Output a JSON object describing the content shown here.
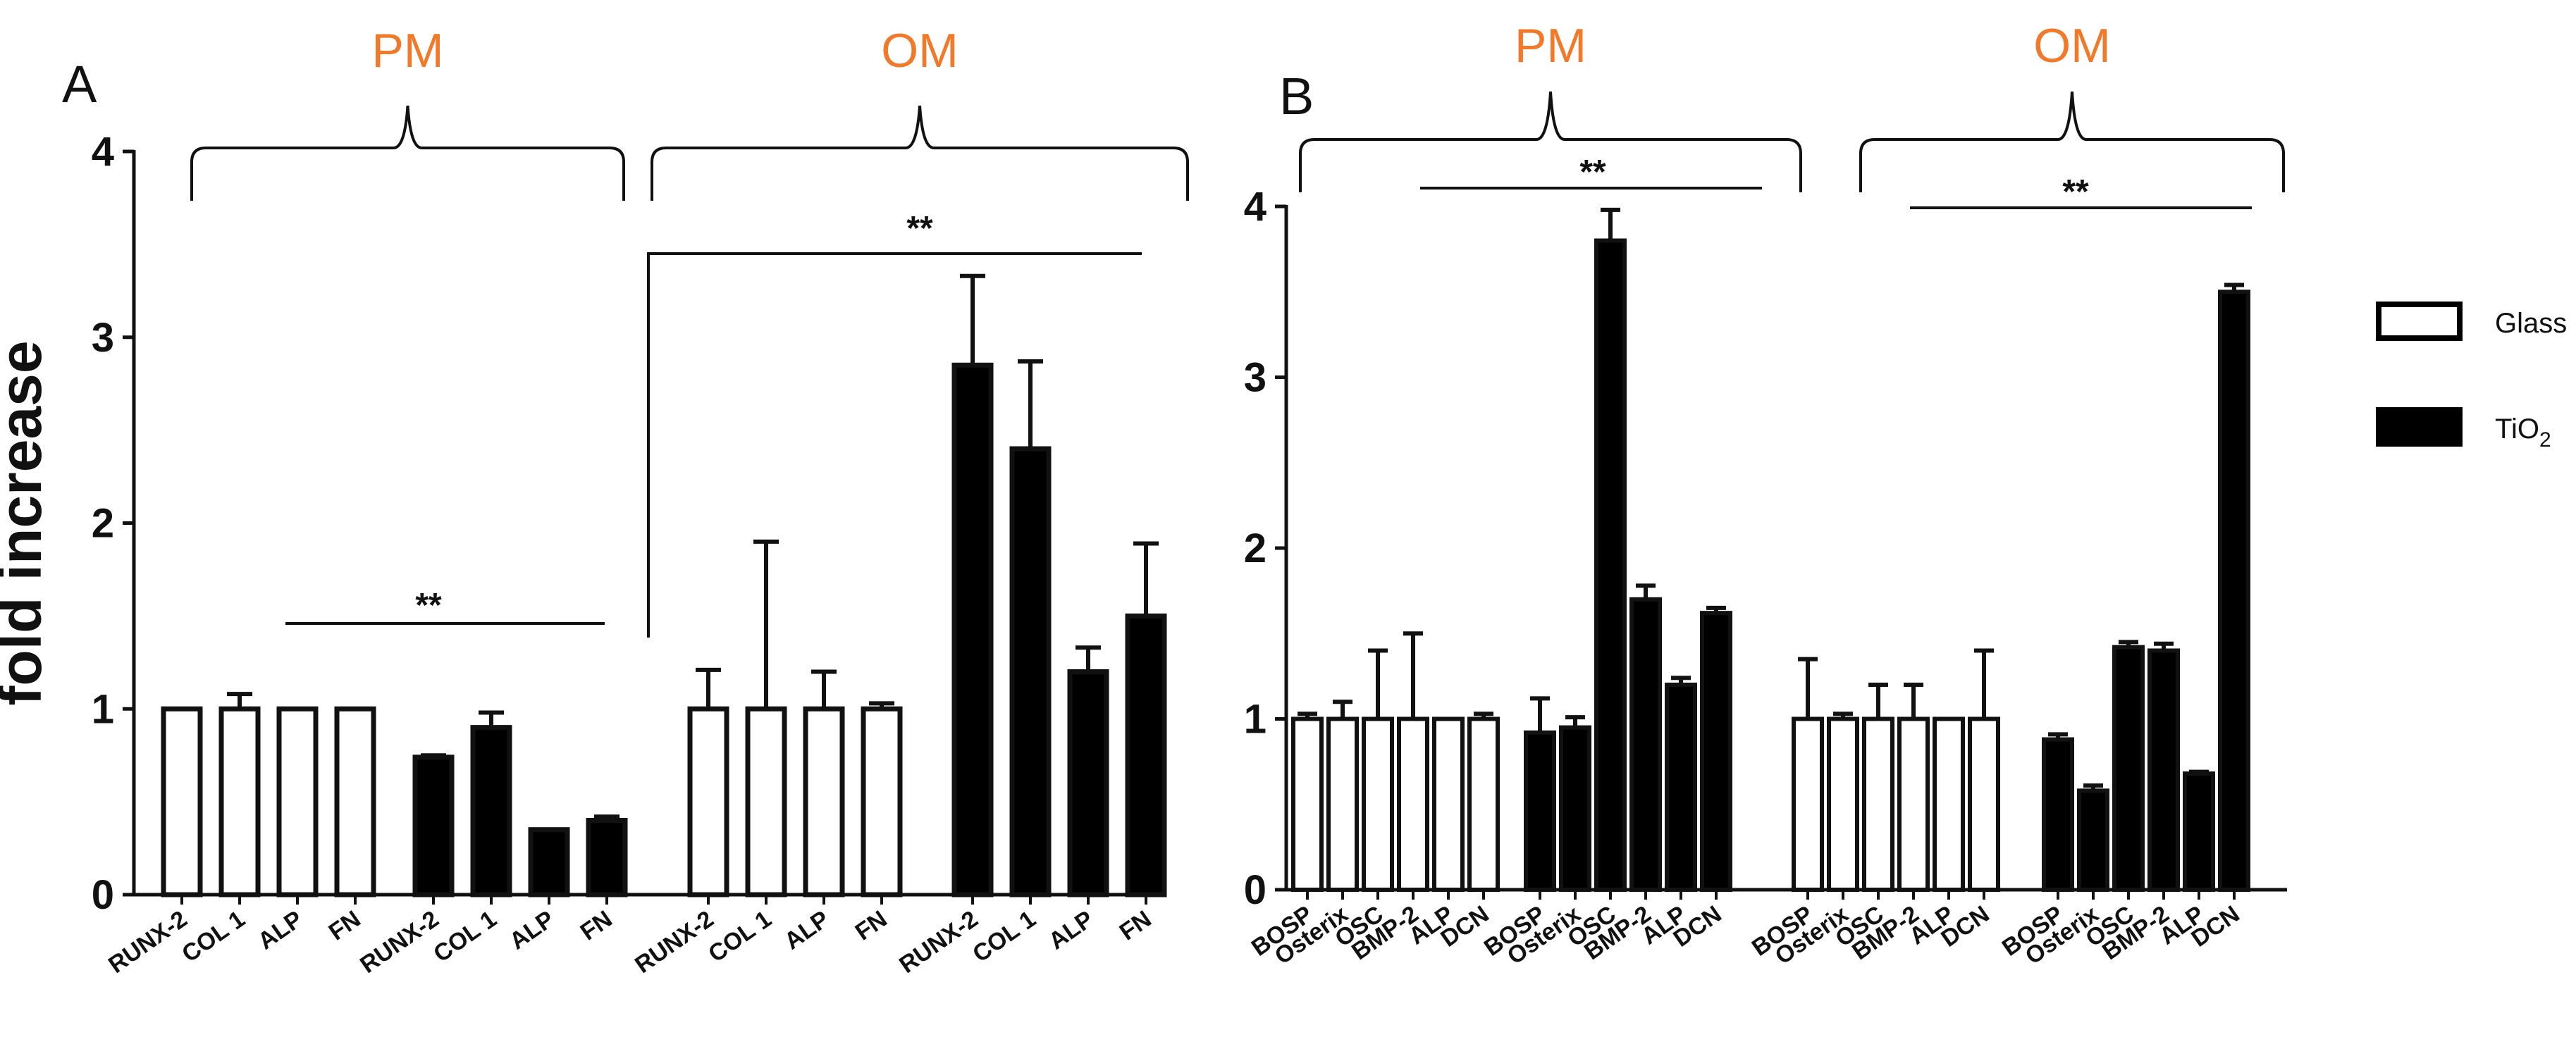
{
  "figure": {
    "colors": {
      "glass_fill": "#ffffff",
      "tio2_fill": "#000000",
      "group_label": "#f07a2a",
      "ink": "#111111"
    }
  },
  "panels": {
    "A": {
      "label": "A"
    },
    "B": {
      "label": "B"
    }
  },
  "legend": {
    "items": [
      {
        "name": "Glass",
        "fill": "#ffffff"
      },
      {
        "name": "TiO",
        "subscript": "2",
        "fill": "#000000"
      }
    ]
  },
  "chart_data": [
    {
      "panel": "A",
      "type": "bar",
      "ylabel": "fold increase",
      "ylim": [
        0,
        4
      ],
      "yticks": [
        0,
        1,
        2,
        3,
        4
      ],
      "group_labels": [
        "PM",
        "OM"
      ],
      "significance": [
        "**",
        "**"
      ],
      "categories": [
        "RUNX-2",
        "COL 1",
        "ALP",
        "FN",
        "RUNX-2",
        "COL 1",
        "ALP",
        "FN",
        "RUNX-2",
        "COL 1",
        "ALP",
        "FN",
        "RUNX-2",
        "COL 1",
        "ALP",
        "FN"
      ],
      "bars": [
        {
          "label": "RUNX-2",
          "series": "Glass",
          "medium": "PM",
          "value": 1.0,
          "error": 0.0
        },
        {
          "label": "COL 1",
          "series": "Glass",
          "medium": "PM",
          "value": 1.0,
          "error": 0.08
        },
        {
          "label": "ALP",
          "series": "Glass",
          "medium": "PM",
          "value": 1.0,
          "error": 0.0
        },
        {
          "label": "FN",
          "series": "Glass",
          "medium": "PM",
          "value": 1.0,
          "error": 0.0
        },
        {
          "label": "RUNX-2",
          "series": "TiO2",
          "medium": "PM",
          "value": 0.74,
          "error": 0.01
        },
        {
          "label": "COL 1",
          "series": "TiO2",
          "medium": "PM",
          "value": 0.9,
          "error": 0.08
        },
        {
          "label": "ALP",
          "series": "TiO2",
          "medium": "PM",
          "value": 0.35,
          "error": 0.0
        },
        {
          "label": "FN",
          "series": "TiO2",
          "medium": "PM",
          "value": 0.4,
          "error": 0.02
        },
        {
          "label": "RUNX-2",
          "series": "Glass",
          "medium": "OM",
          "value": 1.0,
          "error": 0.21
        },
        {
          "label": "COL 1",
          "series": "Glass",
          "medium": "OM",
          "value": 1.0,
          "error": 0.9
        },
        {
          "label": "ALP",
          "series": "Glass",
          "medium": "OM",
          "value": 1.0,
          "error": 0.2
        },
        {
          "label": "FN",
          "series": "Glass",
          "medium": "OM",
          "value": 1.0,
          "error": 0.03
        },
        {
          "label": "RUNX-2",
          "series": "TiO2",
          "medium": "OM",
          "value": 2.85,
          "error": 0.48
        },
        {
          "label": "COL 1",
          "series": "TiO2",
          "medium": "OM",
          "value": 2.4,
          "error": 0.47
        },
        {
          "label": "ALP",
          "series": "TiO2",
          "medium": "OM",
          "value": 1.2,
          "error": 0.13
        },
        {
          "label": "FN",
          "series": "TiO2",
          "medium": "OM",
          "value": 1.5,
          "error": 0.39
        }
      ]
    },
    {
      "panel": "B",
      "type": "bar",
      "ylabel": "",
      "ylim": [
        0,
        4
      ],
      "yticks": [
        0,
        1,
        2,
        3,
        4
      ],
      "group_labels": [
        "PM",
        "OM"
      ],
      "significance": [
        "**",
        "**"
      ],
      "categories": [
        "BOSP",
        "Osterix",
        "OSC",
        "BMP-2",
        "ALP",
        "DCN",
        "BOSP",
        "Osterix",
        "OSC",
        "BMP-2",
        "ALP",
        "DCN",
        "BOSP",
        "Osterix",
        "OSC",
        "BMP-2",
        "ALP",
        "DCN",
        "BOSP",
        "Osterix",
        "OSC",
        "BMP-2",
        "ALP",
        "DCN"
      ],
      "bars": [
        {
          "label": "BOSP",
          "series": "Glass",
          "medium": "PM",
          "value": 1.0,
          "error": 0.03
        },
        {
          "label": "Osterix",
          "series": "Glass",
          "medium": "PM",
          "value": 1.0,
          "error": 0.1
        },
        {
          "label": "OSC",
          "series": "Glass",
          "medium": "PM",
          "value": 1.0,
          "error": 0.4
        },
        {
          "label": "BMP-2",
          "series": "Glass",
          "medium": "PM",
          "value": 1.0,
          "error": 0.5
        },
        {
          "label": "ALP",
          "series": "Glass",
          "medium": "PM",
          "value": 1.0,
          "error": 0.0
        },
        {
          "label": "DCN",
          "series": "Glass",
          "medium": "PM",
          "value": 1.0,
          "error": 0.03
        },
        {
          "label": "BOSP",
          "series": "TiO2",
          "medium": "PM",
          "value": 0.92,
          "error": 0.2
        },
        {
          "label": "Osterix",
          "series": "TiO2",
          "medium": "PM",
          "value": 0.95,
          "error": 0.06
        },
        {
          "label": "OSC",
          "series": "TiO2",
          "medium": "PM",
          "value": 3.8,
          "error": 0.18
        },
        {
          "label": "BMP-2",
          "series": "TiO2",
          "medium": "PM",
          "value": 1.7,
          "error": 0.08
        },
        {
          "label": "ALP",
          "series": "TiO2",
          "medium": "PM",
          "value": 1.2,
          "error": 0.04
        },
        {
          "label": "DCN",
          "series": "TiO2",
          "medium": "PM",
          "value": 1.62,
          "error": 0.03
        },
        {
          "label": "BOSP",
          "series": "Glass",
          "medium": "OM",
          "value": 1.0,
          "error": 0.35
        },
        {
          "label": "Osterix",
          "series": "Glass",
          "medium": "OM",
          "value": 1.0,
          "error": 0.03
        },
        {
          "label": "OSC",
          "series": "Glass",
          "medium": "OM",
          "value": 1.0,
          "error": 0.2
        },
        {
          "label": "BMP-2",
          "series": "Glass",
          "medium": "OM",
          "value": 1.0,
          "error": 0.2
        },
        {
          "label": "ALP",
          "series": "Glass",
          "medium": "OM",
          "value": 1.0,
          "error": 0.0
        },
        {
          "label": "DCN",
          "series": "Glass",
          "medium": "OM",
          "value": 1.0,
          "error": 0.4
        },
        {
          "label": "BOSP",
          "series": "TiO2",
          "medium": "OM",
          "value": 0.88,
          "error": 0.03
        },
        {
          "label": "Osterix",
          "series": "TiO2",
          "medium": "OM",
          "value": 0.58,
          "error": 0.03
        },
        {
          "label": "OSC",
          "series": "TiO2",
          "medium": "OM",
          "value": 1.42,
          "error": 0.03
        },
        {
          "label": "BMP-2",
          "series": "TiO2",
          "medium": "OM",
          "value": 1.4,
          "error": 0.04
        },
        {
          "label": "ALP",
          "series": "TiO2",
          "medium": "OM",
          "value": 0.68,
          "error": 0.01
        },
        {
          "label": "DCN",
          "series": "TiO2",
          "medium": "OM",
          "value": 3.5,
          "error": 0.04
        }
      ]
    }
  ]
}
